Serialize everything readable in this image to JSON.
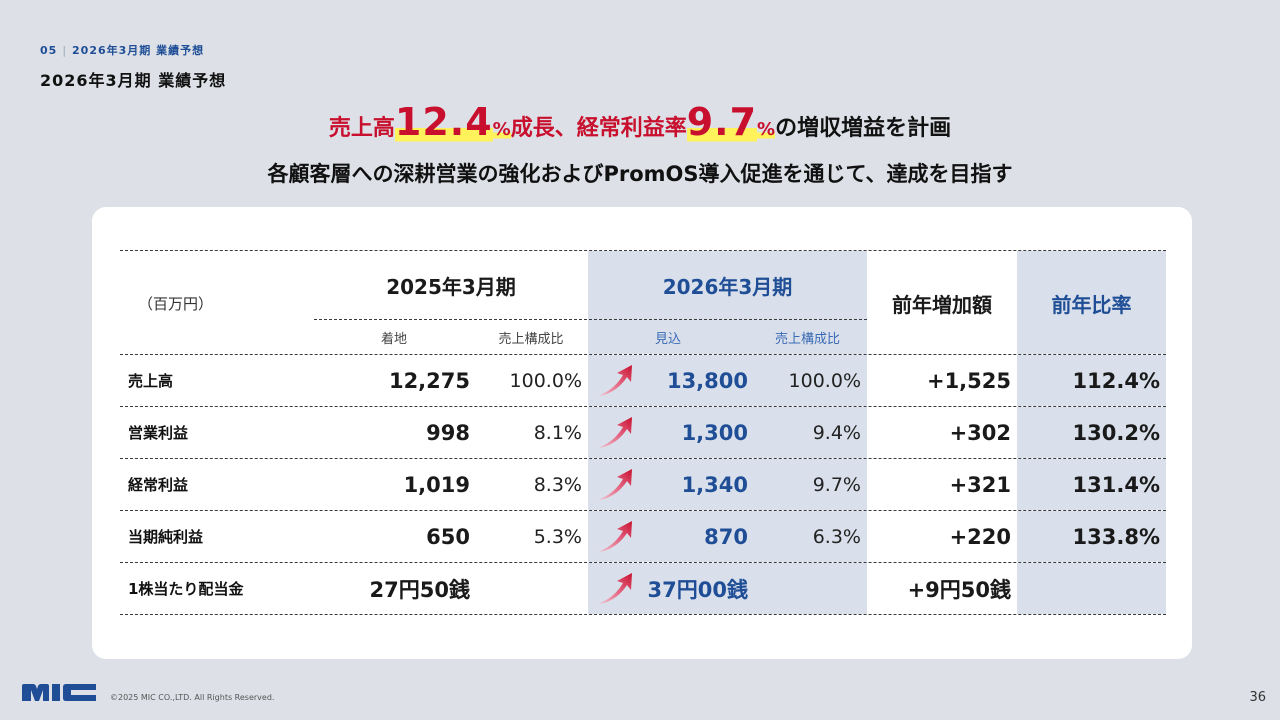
{
  "breadcrumb": {
    "num": "05",
    "label": "2026年3月期 業績予想"
  },
  "page_title": "2026年3月期 業績予想",
  "headline": {
    "p1": "売上高",
    "v1": "12.4",
    "u1": "%",
    "p2": "成長、経常利益率",
    "v2": "9.7",
    "u2": "%",
    "p3": "の増収増益を計画"
  },
  "subline": "各顧客層への深耕営業の強化およびPromOS導入促進を通じて、達成を目指す",
  "table": {
    "unit": "（百万円）",
    "fy2025": {
      "title": "2025年3月期",
      "col1": "着地",
      "col2": "売上構成比"
    },
    "fy2026": {
      "title": "2026年3月期",
      "col1": "見込",
      "col2": "売上構成比"
    },
    "yoy_diff": "前年増加額",
    "yoy_ratio": "前年比率",
    "rows": [
      {
        "label": "売上高",
        "a": "12,275",
        "ar": "100.0%",
        "b": "13,800",
        "br": "100.0%",
        "diff": "+1,525",
        "ratio": "112.4%"
      },
      {
        "label": "営業利益",
        "a": "998",
        "ar": "8.1%",
        "b": "1,300",
        "br": "9.4%",
        "diff": "+302",
        "ratio": "130.2%"
      },
      {
        "label": "経常利益",
        "a": "1,019",
        "ar": "8.3%",
        "b": "1,340",
        "br": "9.7%",
        "diff": "+321",
        "ratio": "131.4%"
      },
      {
        "label": "当期純利益",
        "a": "650",
        "ar": "5.3%",
        "b": "870",
        "br": "6.3%",
        "diff": "+220",
        "ratio": "133.8%"
      },
      {
        "label": "1株当たり配当金",
        "a": "27円50銭",
        "ar": "",
        "b": "37円00銭",
        "br": "",
        "diff": "+9円50銭",
        "ratio": ""
      }
    ]
  },
  "footer": {
    "logo": "MIC",
    "copyright": "©2025 MIC CO.,LTD. All Rights Reserved.",
    "page": "36"
  },
  "colors": {
    "accent_blue": "#1f4e96",
    "accent_red": "#c8102e",
    "highlight": "#fff25a",
    "shade": "#d9e0eb"
  }
}
